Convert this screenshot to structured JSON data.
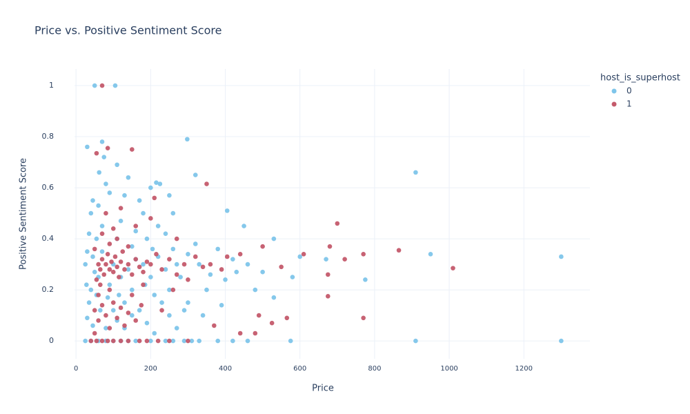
{
  "chart_data": {
    "type": "scatter",
    "title": "Price vs. Positive Sentiment Score",
    "x_label": "Price",
    "y_label": "Positive Sentiment Score",
    "legend_title": "host_is_superhost",
    "xlim": [
      -4,
      1377
    ],
    "ylim": [
      -0.07,
      1.065
    ],
    "xticks": [
      0,
      200,
      400,
      600,
      800,
      1000,
      1200
    ],
    "yticks": [
      0,
      0.2,
      0.4,
      0.6,
      0.8,
      1
    ],
    "grid": true,
    "series": [
      {
        "name": "0",
        "color": "#7ec5ea",
        "x": [
          50,
          105,
          298,
          70,
          30,
          75,
          110,
          62,
          320,
          910,
          215,
          80,
          225,
          140,
          405,
          450,
          950,
          1300,
          775,
          910,
          1300,
          575,
          530,
          530,
          480,
          350,
          430,
          600,
          670,
          580,
          40,
          45,
          60,
          90,
          130,
          170,
          200,
          250,
          260,
          180,
          120,
          35,
          30,
          25,
          28,
          35,
          30,
          25,
          40,
          60,
          80,
          100,
          120,
          140,
          160,
          200,
          240,
          260,
          290,
          310,
          330,
          380,
          420,
          460,
          340,
          300,
          280,
          270,
          300,
          320,
          240,
          220,
          190,
          160,
          150,
          110,
          70,
          55,
          45,
          50,
          40,
          55,
          65,
          45,
          80,
          110,
          130,
          150,
          170,
          190,
          210,
          230,
          250,
          270,
          290,
          250,
          200,
          180,
          220,
          260,
          240,
          210,
          380,
          360,
          400,
          420,
          460,
          500,
          390,
          330,
          100,
          90,
          120,
          70,
          140,
          160,
          60,
          85,
          100,
          115,
          185,
          205,
          130,
          150
        ],
        "values": [
          1,
          1,
          0.79,
          0.78,
          0.76,
          0.72,
          0.69,
          0.66,
          0.65,
          0.66,
          0.62,
          0.615,
          0.615,
          0.64,
          0.51,
          0.45,
          0.34,
          0.33,
          0.24,
          0,
          0,
          0,
          0.4,
          0.17,
          0.2,
          0.2,
          0.27,
          0.33,
          0.32,
          0.25,
          0.5,
          0.55,
          0.53,
          0.58,
          0.57,
          0.55,
          0.6,
          0.57,
          0.5,
          0.5,
          0.47,
          0.42,
          0.35,
          0.3,
          0.22,
          0.15,
          0.09,
          0,
          0,
          0,
          0,
          0,
          0,
          0,
          0,
          0,
          0,
          0,
          0,
          0,
          0,
          0,
          0,
          0,
          0.1,
          0.15,
          0.25,
          0.3,
          0.34,
          0.38,
          0.42,
          0.45,
          0.4,
          0.43,
          0.37,
          0.4,
          0.45,
          0.4,
          0.33,
          0.27,
          0.2,
          0.18,
          0.12,
          0.06,
          0.05,
          0.08,
          0.15,
          0.2,
          0.12,
          0.07,
          0.03,
          0.15,
          0.1,
          0.05,
          0.12,
          0.2,
          0.25,
          0.3,
          0.33,
          0.36,
          0.28,
          0.18,
          0.36,
          0.26,
          0.24,
          0.32,
          0.3,
          0.27,
          0.14,
          0.3,
          0.3,
          0.22,
          0.25,
          0.35,
          0.28,
          0.32,
          0.25,
          0.17,
          0.12,
          0.18,
          0.22,
          0.36,
          0.05,
          0.1
        ]
      },
      {
        "name": "1",
        "color": "#c45a6b",
        "x": [
          70,
          150,
          55,
          85,
          350,
          210,
          405,
          700,
          680,
          610,
          865,
          1010,
          770,
          770,
          675,
          675,
          720,
          500,
          550,
          565,
          525,
          490,
          480,
          440,
          440,
          370,
          60,
          65,
          70,
          75,
          80,
          85,
          90,
          95,
          100,
          105,
          110,
          115,
          120,
          125,
          130,
          140,
          150,
          160,
          170,
          180,
          190,
          200,
          215,
          230,
          250,
          270,
          290,
          320,
          340,
          50,
          55,
          65,
          90,
          110,
          140,
          70,
          100,
          160,
          200,
          120,
          80,
          50,
          60,
          70,
          80,
          90,
          100,
          110,
          120,
          130,
          140,
          150,
          160,
          175,
          60,
          90,
          50,
          40,
          55,
          70,
          85,
          100,
          120,
          140,
          170,
          190,
          220,
          250,
          300,
          180,
          260,
          230,
          300,
          360,
          390,
          270
        ],
        "values": [
          1,
          0.75,
          0.735,
          0.755,
          0.615,
          0.56,
          0.33,
          0.46,
          0.37,
          0.34,
          0.355,
          0.285,
          0.34,
          0.09,
          0.175,
          0.26,
          0.32,
          0.37,
          0.29,
          0.09,
          0.07,
          0.1,
          0.03,
          0.34,
          0.03,
          0.06,
          0.3,
          0.28,
          0.32,
          0.26,
          0.3,
          0.34,
          0.28,
          0.31,
          0.27,
          0.33,
          0.29,
          0.25,
          0.31,
          0.35,
          0.28,
          0.3,
          0.26,
          0.32,
          0.29,
          0.27,
          0.31,
          0.3,
          0.34,
          0.28,
          0.32,
          0.26,
          0.3,
          0.33,
          0.29,
          0.36,
          0.24,
          0.22,
          0.38,
          0.4,
          0.37,
          0.42,
          0.44,
          0.45,
          0.48,
          0.52,
          0.5,
          0.12,
          0.08,
          0.14,
          0.1,
          0.05,
          0.15,
          0.09,
          0.13,
          0.06,
          0.11,
          0.18,
          0.08,
          0.14,
          0.18,
          0.2,
          0.03,
          0,
          0,
          0,
          0,
          0,
          0,
          0,
          0,
          0,
          0,
          0,
          0,
          0.22,
          0.2,
          0.12,
          0.24,
          0.3,
          0.28,
          0.4
        ]
      }
    ]
  }
}
